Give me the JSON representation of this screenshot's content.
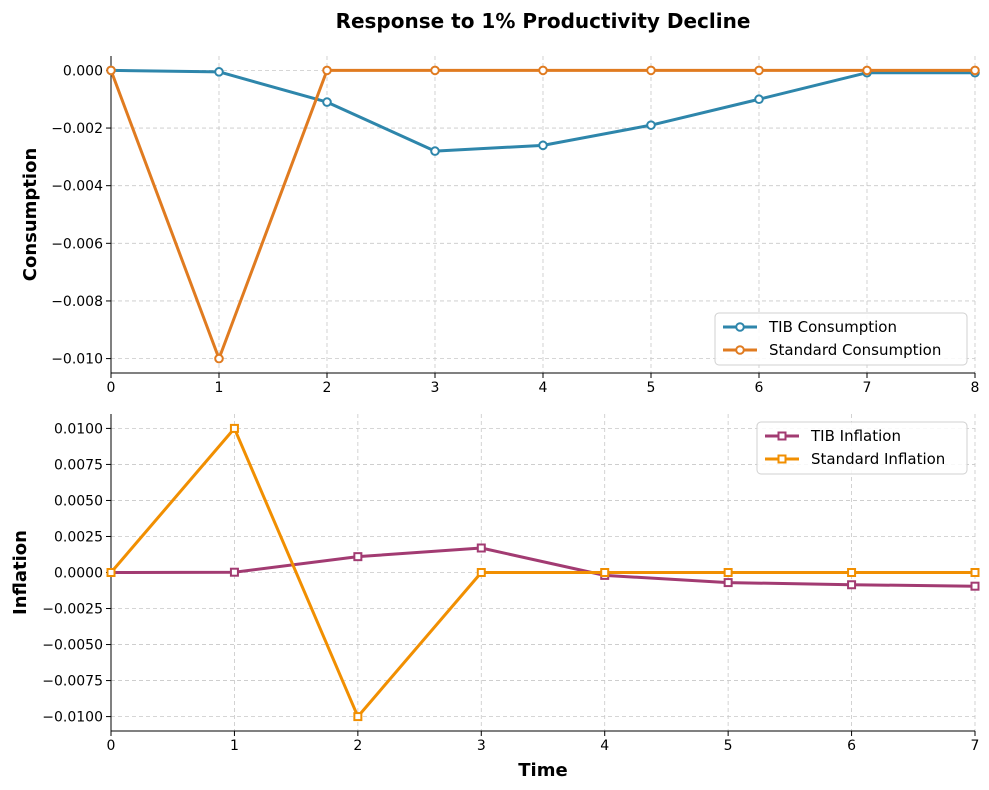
{
  "title": "Response to 1% Productivity Decline",
  "chart_data": [
    {
      "type": "line",
      "ylabel": "Consumption",
      "xlabel": "",
      "xlim": [
        0,
        8
      ],
      "ylim": [
        -0.0105,
        0.0005
      ],
      "x_ticks": [
        0,
        1,
        2,
        3,
        4,
        5,
        6,
        7,
        8
      ],
      "x_tick_labels": [
        "0",
        "1",
        "2",
        "3",
        "4",
        "5",
        "6",
        "7",
        "8"
      ],
      "y_ticks": [
        0.0,
        -0.002,
        -0.004,
        -0.006,
        -0.008,
        -0.01
      ],
      "y_tick_labels": [
        "0.000",
        "−0.002",
        "−0.004",
        "−0.006",
        "−0.008",
        "−0.010"
      ],
      "grid": true,
      "legend_position": "bottom-right",
      "x": [
        0,
        1,
        2,
        3,
        4,
        5,
        6,
        7,
        8
      ],
      "series": [
        {
          "name": "TIB Consumption",
          "color": "#2e86ab",
          "marker": "circle",
          "values": [
            0.0,
            -5e-05,
            -0.0011,
            -0.0028,
            -0.0026,
            -0.0019,
            -0.001,
            -8e-05,
            -8e-05
          ]
        },
        {
          "name": "Standard Consumption",
          "color": "#e07b20",
          "marker": "circle",
          "values": [
            0.0,
            -0.01,
            0.0,
            0.0,
            0.0,
            0.0,
            0.0,
            0.0,
            0.0
          ]
        }
      ]
    },
    {
      "type": "line",
      "ylabel": "Inflation",
      "xlabel": "Time",
      "xlim": [
        0,
        7
      ],
      "ylim": [
        -0.011,
        0.011
      ],
      "x_ticks": [
        0,
        1,
        2,
        3,
        4,
        5,
        6,
        7
      ],
      "x_tick_labels": [
        "0",
        "1",
        "2",
        "3",
        "4",
        "5",
        "6",
        "7"
      ],
      "y_ticks": [
        0.01,
        0.0075,
        0.005,
        0.0025,
        0.0,
        -0.0025,
        -0.005,
        -0.0075,
        -0.01
      ],
      "y_tick_labels": [
        "0.0100",
        "0.0075",
        "0.0050",
        "0.0025",
        "0.0000",
        "−0.0025",
        "−0.0050",
        "−0.0075",
        "−0.0100"
      ],
      "grid": true,
      "legend_position": "top-right",
      "x": [
        0,
        1,
        2,
        3,
        4,
        5,
        6,
        7
      ],
      "series": [
        {
          "name": "TIB Inflation",
          "color": "#a23b72",
          "marker": "square",
          "values": [
            0.0,
            2e-05,
            0.0011,
            0.0017,
            -0.0002,
            -0.0007,
            -0.00085,
            -0.00095
          ]
        },
        {
          "name": "Standard Inflation",
          "color": "#f18f01",
          "marker": "square",
          "values": [
            0.0,
            0.01,
            -0.01,
            0.0,
            0.0,
            0.0,
            0.0,
            0.0
          ]
        }
      ]
    }
  ]
}
